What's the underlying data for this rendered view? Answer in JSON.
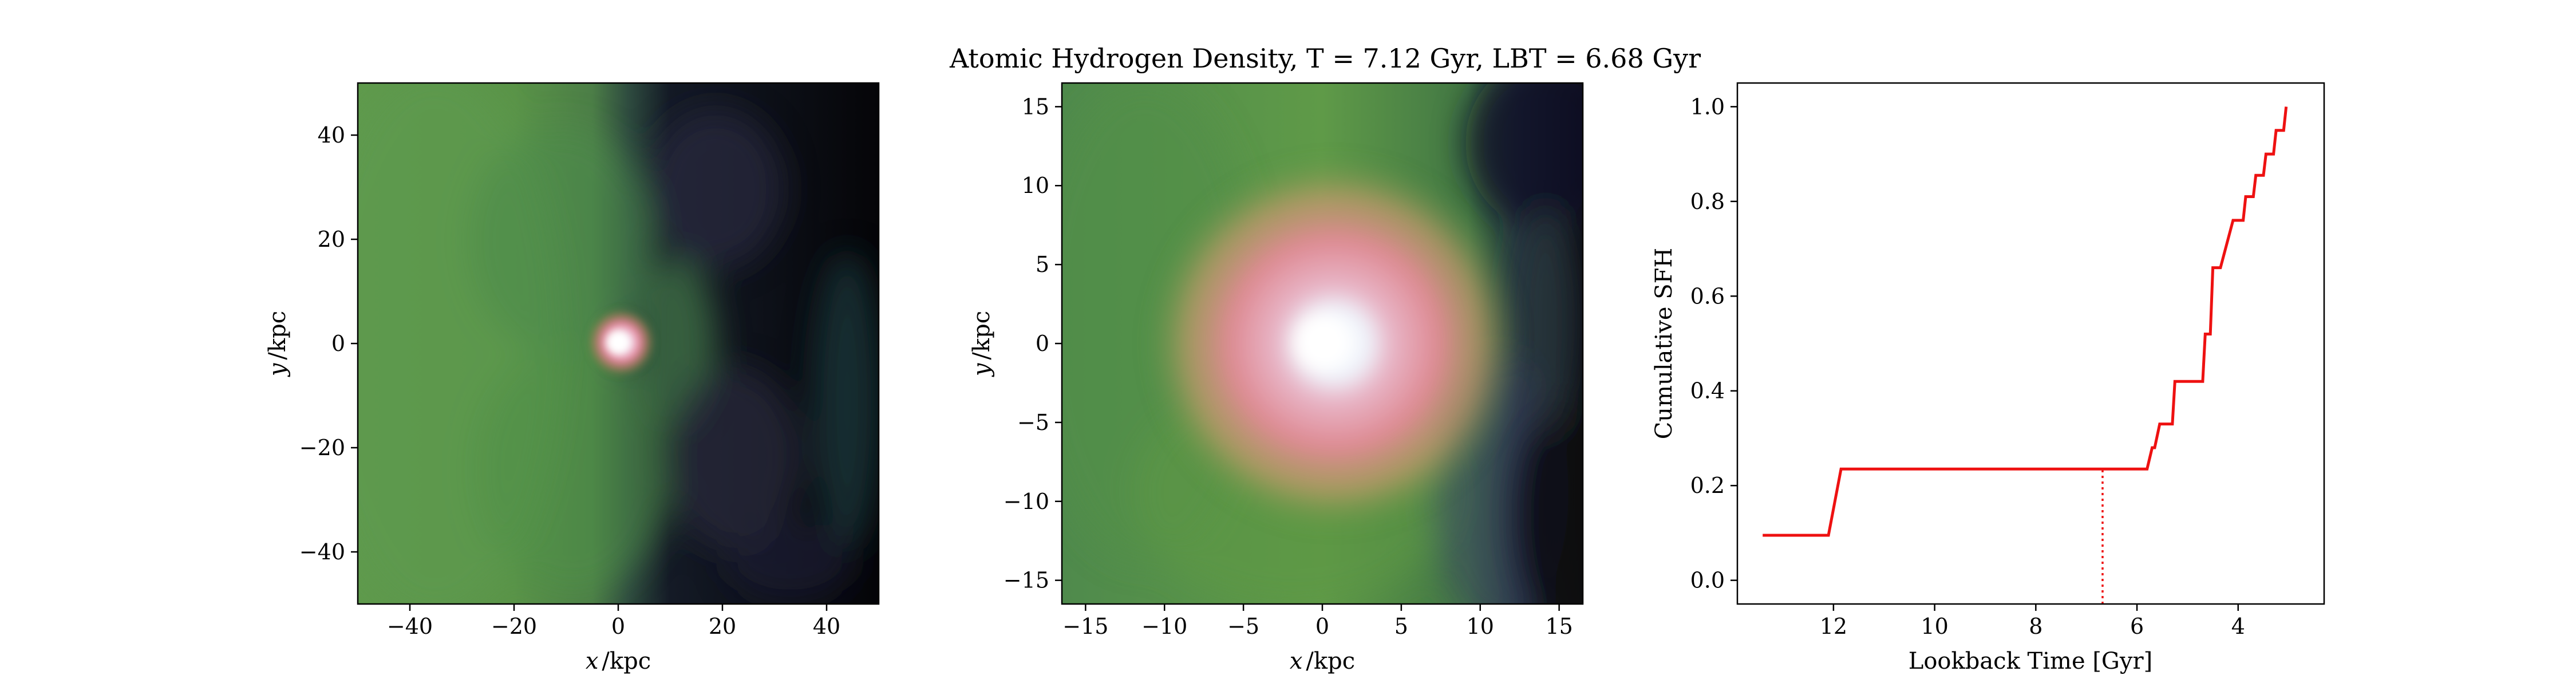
{
  "title": "Atomic Hydrogen Density, T = 7.12 Gyr, LBT = 6.68 Gyr",
  "chart_data": [
    {
      "type": "heatmap",
      "panel": "left-density-map",
      "xlabel_var": "x",
      "ylabel_var": "y",
      "xlabel_unit": "/kpc",
      "ylabel_unit": "/kpc",
      "xlim": [
        -50,
        50
      ],
      "ylim": [
        -50,
        50
      ],
      "xticks": [
        -40,
        -20,
        0,
        20,
        40
      ],
      "yticks": [
        -40,
        -20,
        0,
        20,
        40
      ],
      "xtick_labels": [
        "−40",
        "−20",
        "0",
        "20",
        "40"
      ],
      "ytick_labels": [
        "−40",
        "−20",
        "0",
        "20",
        "40"
      ],
      "description_colormap": "dark-to-green-to-pink-to-white",
      "core_center": [
        0,
        0
      ]
    },
    {
      "type": "heatmap",
      "panel": "middle-density-map",
      "xlabel_var": "x",
      "ylabel_var": "y",
      "xlabel_unit": "/kpc",
      "ylabel_unit": "/kpc",
      "xlim": [
        -16.5,
        16.5
      ],
      "ylim": [
        -16.5,
        16.5
      ],
      "xticks": [
        -15,
        -10,
        -5,
        0,
        5,
        10,
        15
      ],
      "yticks": [
        -15,
        -10,
        -5,
        0,
        5,
        10,
        15
      ],
      "xtick_labels": [
        "−15",
        "−10",
        "−5",
        "0",
        "5",
        "10",
        "15"
      ],
      "ytick_labels": [
        "−15",
        "−10",
        "−5",
        "0",
        "5",
        "10",
        "15"
      ],
      "core_center": [
        0,
        0
      ]
    },
    {
      "type": "line",
      "panel": "cumulative-sfh",
      "xlabel": "Lookback Time [Gyr]",
      "ylabel": "Cumulative SFH",
      "xlim": [
        13.9,
        2.3
      ],
      "ylim": [
        -0.05,
        1.05
      ],
      "xticks": [
        12,
        10,
        8,
        6,
        4
      ],
      "yticks": [
        0.0,
        0.2,
        0.4,
        0.6,
        0.8,
        1.0
      ],
      "xtick_labels": [
        "12",
        "10",
        "8",
        "6",
        "4"
      ],
      "ytick_labels": [
        "0.0",
        "0.2",
        "0.4",
        "0.6",
        "0.8",
        "1.0"
      ],
      "line_color": "#ee1111",
      "series": [
        {
          "x": [
            13.4,
            12.1,
            11.85,
            5.8,
            5.7,
            5.65,
            5.55,
            5.5,
            5.3,
            5.25,
            5.05,
            5.0,
            4.7,
            4.65,
            4.55,
            4.5,
            4.4,
            4.35,
            4.1,
            4.05,
            3.9,
            3.85,
            3.7,
            3.65,
            3.5,
            3.45,
            3.3,
            3.25,
            3.1,
            3.05
          ],
          "y": [
            0.095,
            0.095,
            0.235,
            0.235,
            0.28,
            0.28,
            0.33,
            0.33,
            0.33,
            0.42,
            0.42,
            0.42,
            0.42,
            0.52,
            0.52,
            0.66,
            0.66,
            0.66,
            0.76,
            0.76,
            0.76,
            0.81,
            0.81,
            0.855,
            0.855,
            0.9,
            0.9,
            0.95,
            0.95,
            1.0
          ]
        }
      ],
      "vline": {
        "x": 6.68,
        "style": "dotted"
      }
    }
  ]
}
